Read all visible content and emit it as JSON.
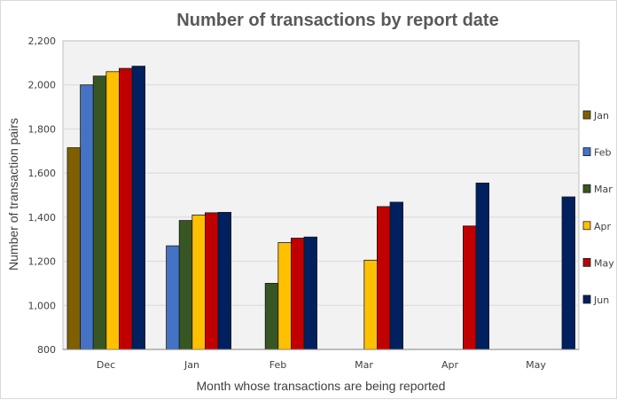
{
  "chart_data": {
    "type": "bar",
    "title": "Number of transactions by report date",
    "xlabel": "Month whose transactions are being reported",
    "ylabel": "Number of transaction pairs",
    "categories": [
      "Dec",
      "Jan",
      "Feb",
      "Mar",
      "Apr",
      "May"
    ],
    "ylim": [
      800,
      2200
    ],
    "yticks": [
      800,
      1000,
      1200,
      1400,
      1600,
      1800,
      2000,
      2200
    ],
    "ytick_labels": [
      "800",
      "1,000",
      "1,200",
      "1,400",
      "1,600",
      "1,800",
      "2,000",
      "2,200"
    ],
    "grid": true,
    "legend_position": "right",
    "series": [
      {
        "name": "Jan",
        "color": "#7f6000",
        "values": [
          1715,
          null,
          null,
          null,
          null,
          null
        ]
      },
      {
        "name": "Feb",
        "color": "#4472c4",
        "values": [
          2000,
          1270,
          null,
          null,
          null,
          null
        ]
      },
      {
        "name": "Mar",
        "color": "#375623",
        "values": [
          2040,
          1385,
          1100,
          null,
          null,
          null
        ]
      },
      {
        "name": "Apr",
        "color": "#ffc000",
        "values": [
          2060,
          1410,
          1285,
          1205,
          null,
          null
        ]
      },
      {
        "name": "May",
        "color": "#c00000",
        "values": [
          2075,
          1420,
          1305,
          1448,
          1360,
          null
        ]
      },
      {
        "name": "Jun",
        "color": "#002060",
        "values": [
          2085,
          1422,
          1310,
          1468,
          1555,
          1492
        ]
      }
    ]
  }
}
